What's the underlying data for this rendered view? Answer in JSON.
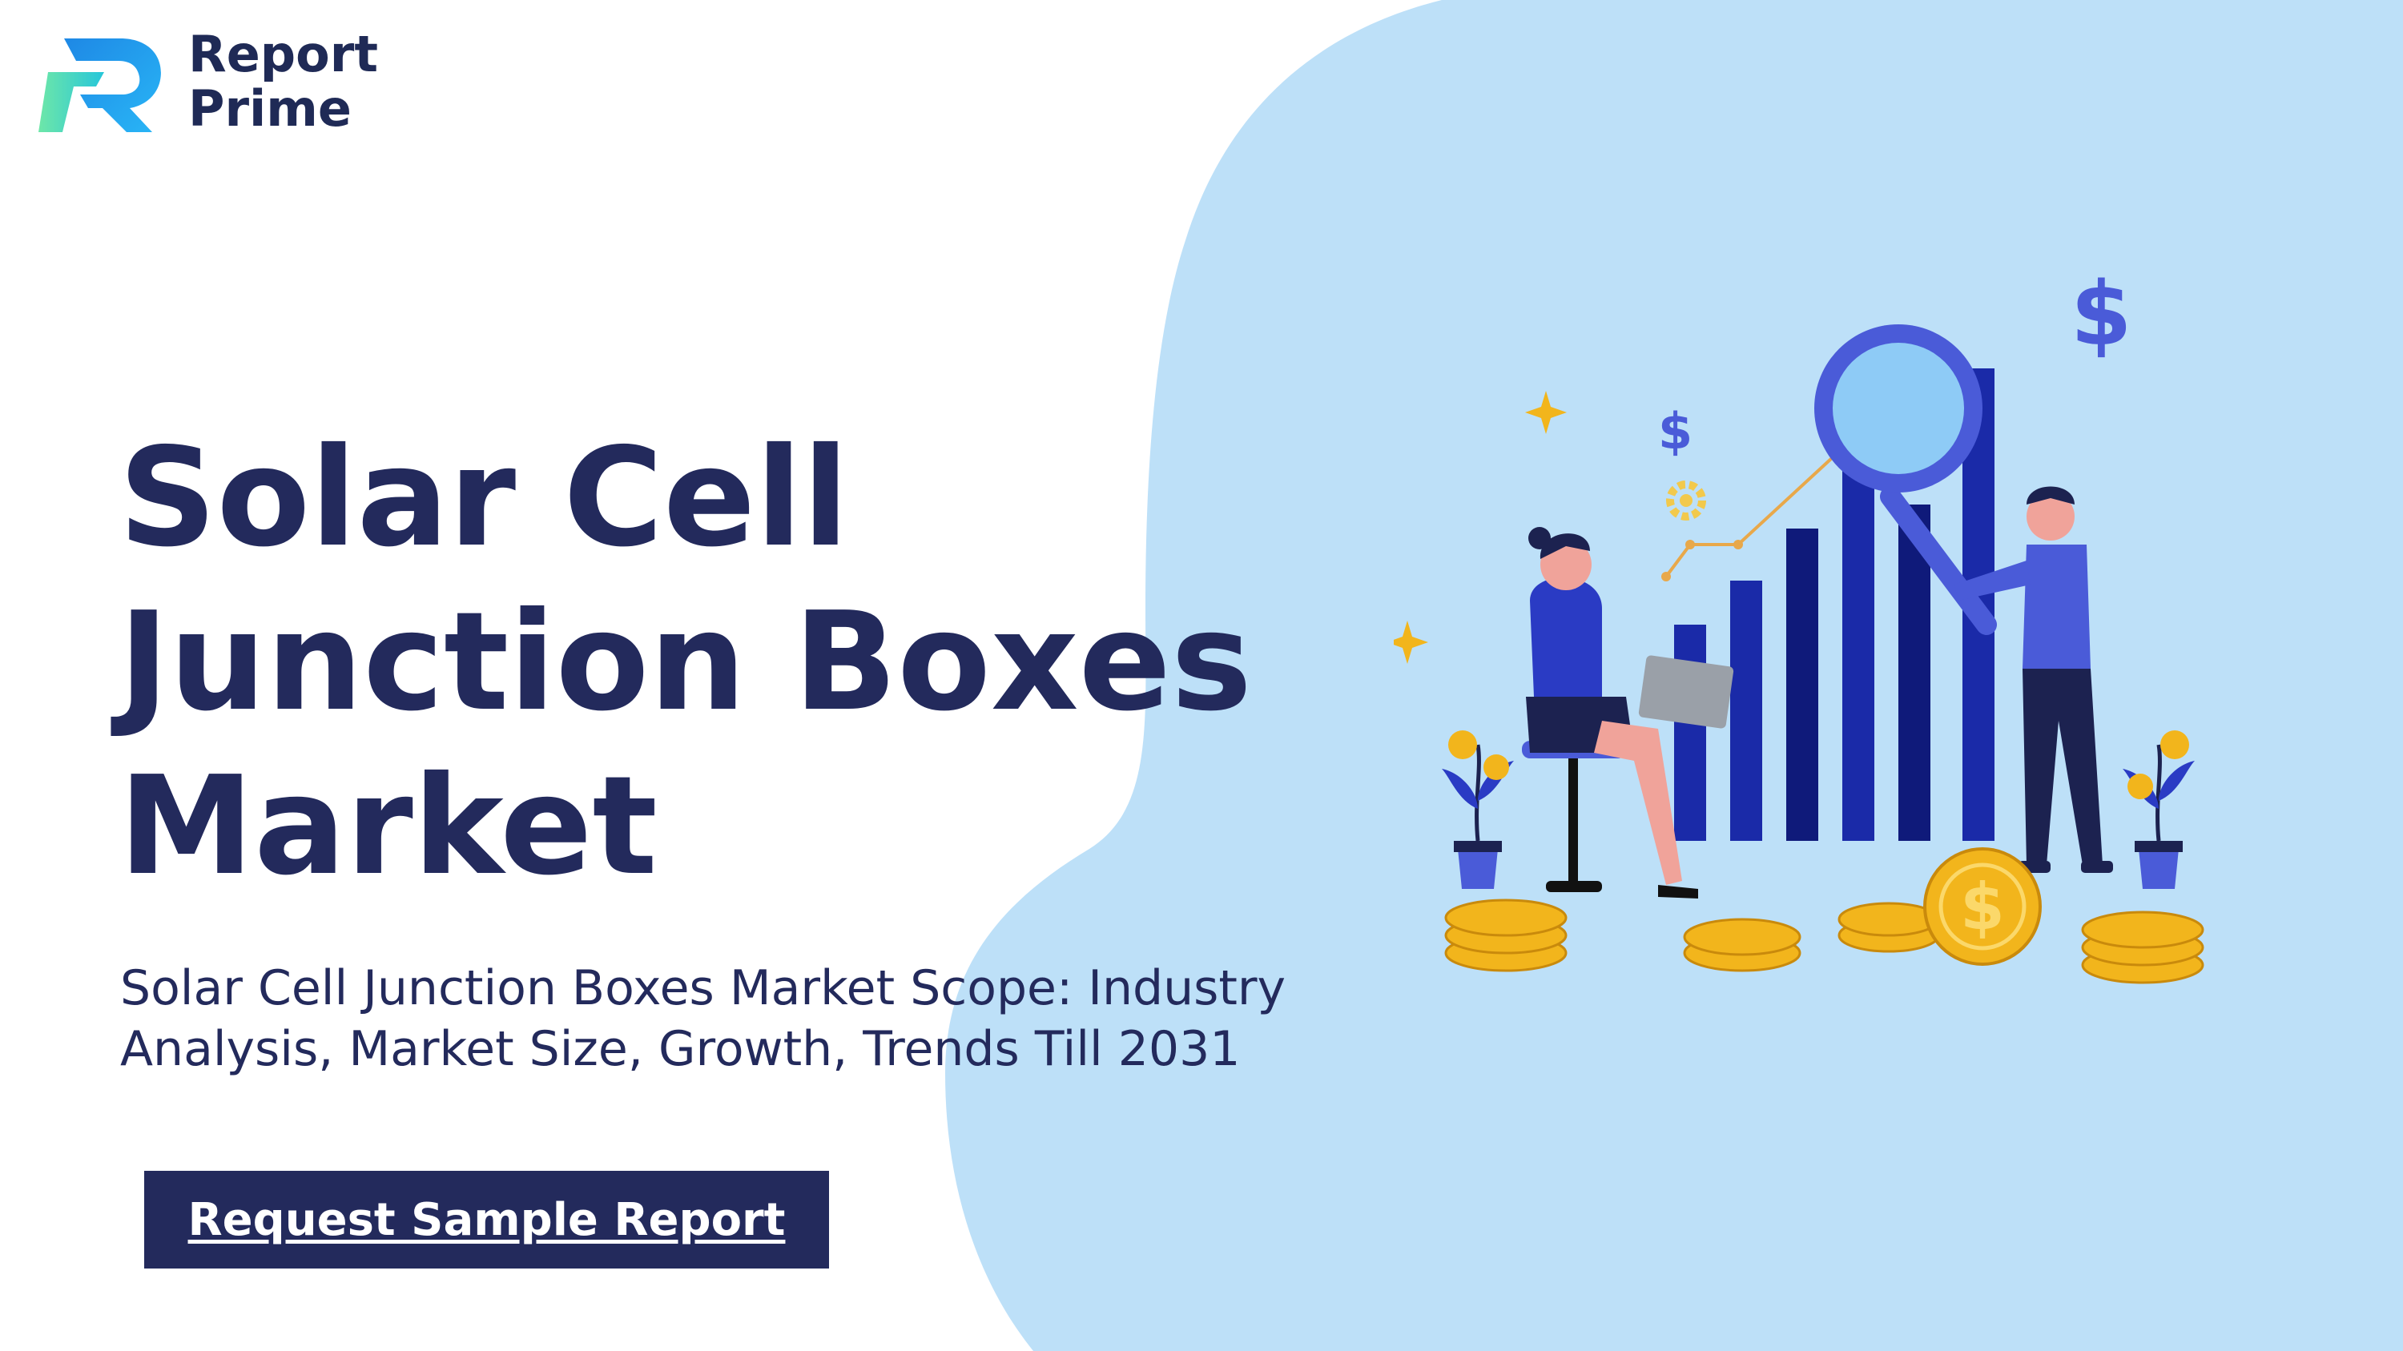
{
  "brand": {
    "logo_line1": "Report",
    "logo_line2": "Prime"
  },
  "hero": {
    "title_lines": [
      "Solar Cell",
      "Junction Boxes",
      "Market"
    ],
    "subtitle_lines": [
      "Solar Cell Junction Boxes Market Scope: Industry",
      "Analysis, Market Size, Growth, Trends Till 2031"
    ],
    "cta_label": "Request Sample Report"
  },
  "illustration": {
    "dollar_sign": "$"
  },
  "colors": {
    "navy": "#232a5c",
    "light_blue_blob": "#bde0f8",
    "bar_blue": "#1a2aa8",
    "accent_gold": "#f2b51c",
    "logo_blue": "#1e88e5",
    "logo_green": "#6ee7a8"
  },
  "icons": [
    "logo-mark-icon",
    "magnifier-icon",
    "dollar-icon",
    "gear-icon",
    "sparkle-icon",
    "coin-icon",
    "plant-icon",
    "arrow-up-icon"
  ]
}
